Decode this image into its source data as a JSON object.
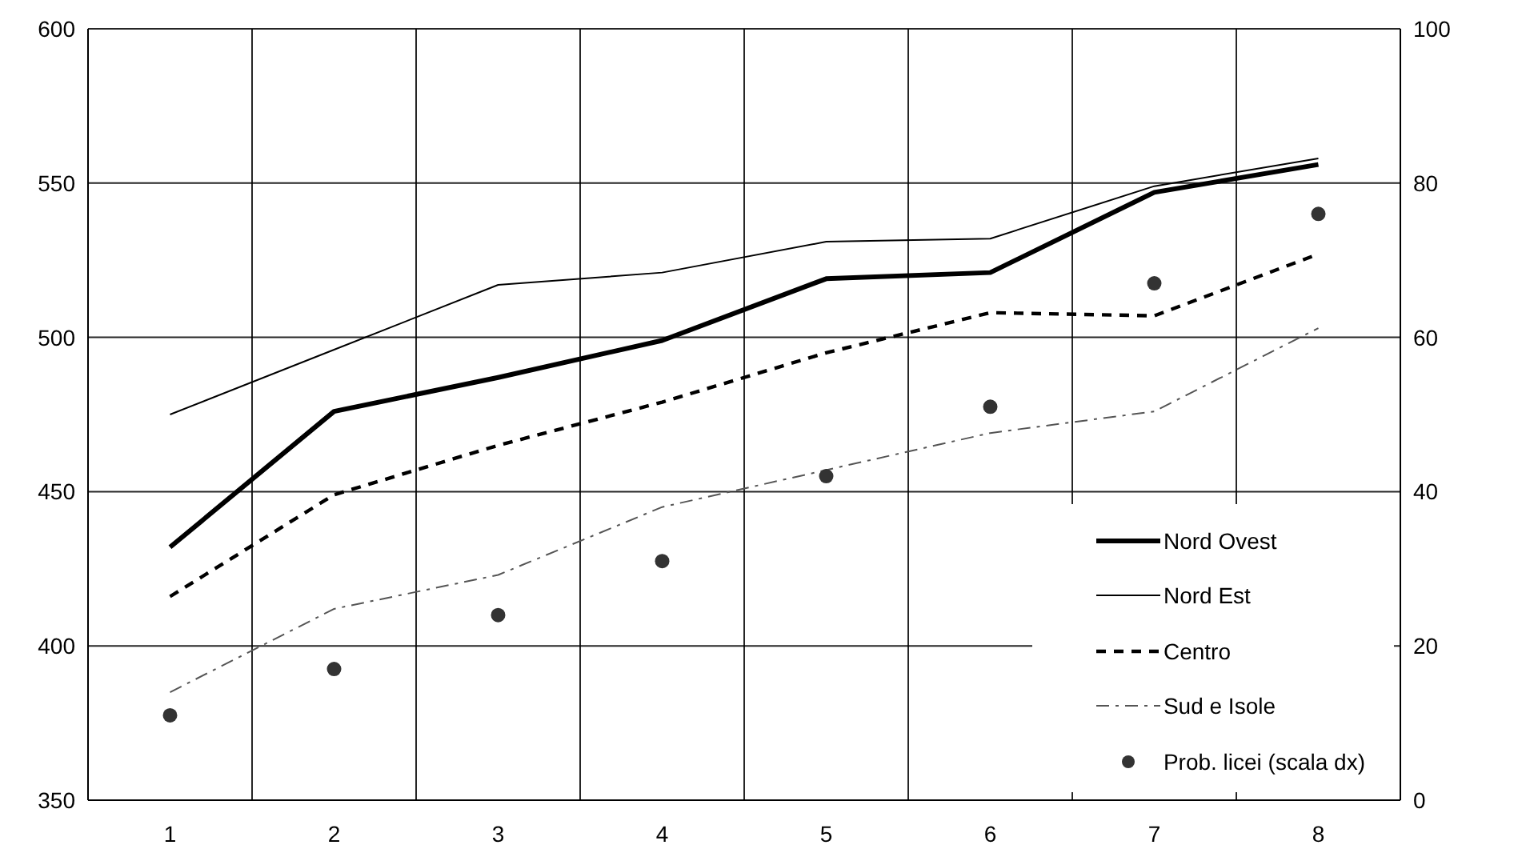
{
  "chart_data": {
    "type": "line",
    "categories": [
      "1",
      "2",
      "3",
      "4",
      "5",
      "6",
      "7",
      "8"
    ],
    "series": [
      {
        "name": "Nord Ovest",
        "color": "#000000",
        "line_style": "solid",
        "values": [
          432,
          476,
          487,
          499,
          519,
          521,
          547,
          556
        ]
      },
      {
        "name": "Nord Est",
        "color": "#000000",
        "line_style": "solid",
        "values": [
          475,
          496,
          517,
          521,
          531,
          532,
          549,
          558
        ]
      },
      {
        "name": "Centro",
        "color": "#000000",
        "line_style": "dashed",
        "values": [
          416,
          449,
          465,
          479,
          495,
          508,
          507,
          527
        ]
      },
      {
        "name": "Sud e Isole",
        "color": "#555555",
        "line_style": "dashdot",
        "values": [
          385,
          412,
          423,
          445,
          457,
          469,
          476,
          503
        ]
      },
      {
        "name": "Prob. licei (scala dx)",
        "type": "scatter",
        "axis": "y2",
        "color": "#333333",
        "marker": "circle",
        "values": [
          11,
          17,
          24,
          31,
          42,
          51,
          67,
          76
        ]
      }
    ],
    "ylim": [
      350,
      600
    ],
    "yticks": [
      350,
      400,
      450,
      500,
      550,
      600
    ],
    "y2lim": [
      0,
      100
    ],
    "y2ticks": [
      0,
      20,
      40,
      60,
      80,
      100
    ],
    "grid": true,
    "legend": "bottom right",
    "marker": "none"
  }
}
